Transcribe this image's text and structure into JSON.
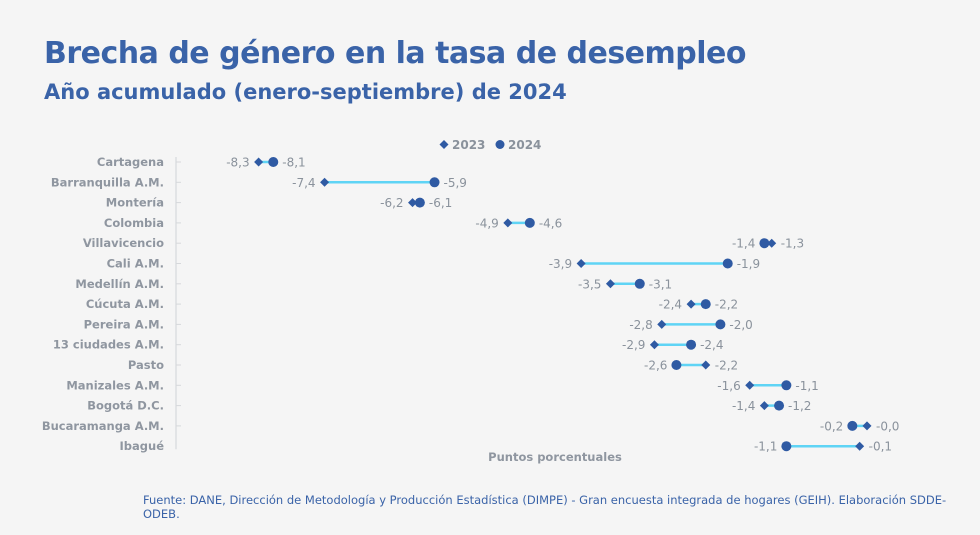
{
  "header": {
    "title": "Brecha de género en la tasa de desempleo",
    "subtitle": "Año acumulado (enero-septiembre) de 2024"
  },
  "footer": {
    "source": "Fuente: DANE, Dirección de Metodología y Producción Estadística (DIMPE) - Gran encuesta integrada de hogares (GEIH). Elaboración SDDE-ODEB."
  },
  "colors": {
    "title": "#3a63a8",
    "marker": "#2f5aa3",
    "connector": "#5fd4f5",
    "label": "#8a929c"
  },
  "chart_data": {
    "type": "dumbbell",
    "title": "Brecha de género en la tasa de desempleo",
    "subtitle": "Año acumulado (enero-septiembre) de 2024",
    "xlabel": "Puntos porcentuales",
    "ylabel": "",
    "xlim": [
      -9.0,
      0.4
    ],
    "grid": false,
    "legend": {
      "placement": "top-center",
      "entries": [
        {
          "name": "2023",
          "marker": "diamond"
        },
        {
          "name": "2024",
          "marker": "circle"
        }
      ]
    },
    "categories": [
      "Cartagena",
      "Barranquilla A.M.",
      "Montería",
      "Colombia",
      "Villavicencio",
      "Cali A.M.",
      "Medellín A.M.",
      "Cúcuta A.M.",
      "Pereira A.M.",
      "13 ciudades A.M.",
      "Pasto",
      "Manizales A.M.",
      "Bogotá D.C.",
      "Bucaramanga A.M.",
      "Ibagué"
    ],
    "series": [
      {
        "name": "2023",
        "values": [
          -8.3,
          -7.4,
          -6.2,
          -4.9,
          -1.3,
          -3.9,
          -3.5,
          -2.4,
          -2.8,
          -2.9,
          -2.2,
          -1.6,
          -1.4,
          -0.0,
          -0.1
        ],
        "labels": [
          "-8,3",
          "-7,4",
          "-6,2",
          "-4,9",
          "-1,3",
          "-3,9",
          "-3,5",
          "-2,4",
          "-2,8",
          "-2,9",
          "-2,2",
          "-1,6",
          "-1,4",
          "-0,0",
          "-0,1"
        ]
      },
      {
        "name": "2024",
        "values": [
          -8.1,
          -5.9,
          -6.1,
          -4.6,
          -1.4,
          -1.9,
          -3.1,
          -2.2,
          -2.0,
          -2.4,
          -2.6,
          -1.1,
          -1.2,
          -0.2,
          -1.1
        ],
        "labels": [
          "-8,1",
          "-5,9",
          "-6,1",
          "-4,6",
          "-1,4",
          "-1,9",
          "-3,1",
          "-2,2",
          "-2,0",
          "-2,4",
          "-2,6",
          "-1,1",
          "-1,2",
          "-0,2",
          "-1,1"
        ]
      }
    ]
  }
}
